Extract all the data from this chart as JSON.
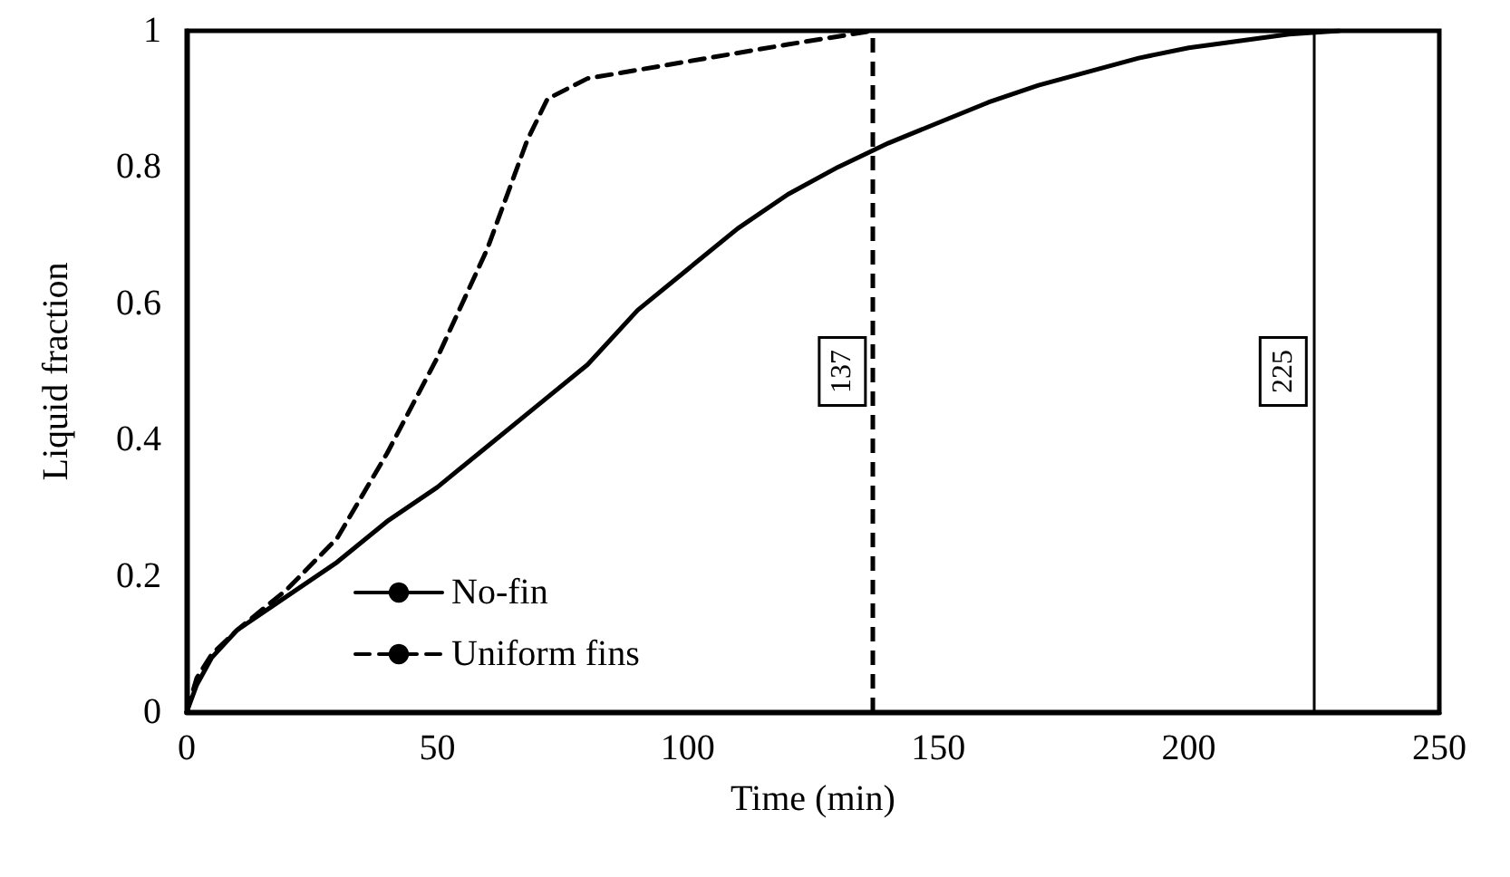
{
  "chart_data": {
    "type": "line",
    "xlabel": "Time (min)",
    "ylabel": "Liquid fraction",
    "xlim": [
      0,
      250
    ],
    "xticks": [
      0,
      50,
      100,
      150,
      200,
      250
    ],
    "ylim": [
      0,
      1
    ],
    "yticks": [
      0,
      0.2,
      0.4,
      0.6,
      0.8,
      1
    ],
    "grid": false,
    "legend": "bottom left",
    "marker": "none",
    "series": [
      {
        "name": "No-fin",
        "color": "#000000",
        "line_style": "solid",
        "x": [
          0,
          2,
          5,
          10,
          20,
          30,
          40,
          50,
          60,
          70,
          80,
          90,
          100,
          110,
          120,
          130,
          140,
          150,
          160,
          170,
          180,
          190,
          200,
          210,
          220,
          230
        ],
        "values": [
          0,
          0.04,
          0.08,
          0.12,
          0.17,
          0.22,
          0.28,
          0.33,
          0.39,
          0.45,
          0.51,
          0.59,
          0.65,
          0.71,
          0.76,
          0.8,
          0.835,
          0.865,
          0.895,
          0.92,
          0.94,
          0.96,
          0.975,
          0.985,
          0.995,
          1
        ]
      },
      {
        "name": "Uniform fins",
        "color": "#000000",
        "line_style": "dashed",
        "x": [
          0,
          2,
          5,
          10,
          20,
          30,
          40,
          50,
          60,
          68,
          72,
          80,
          100,
          120,
          137
        ],
        "values": [
          0,
          0.05,
          0.085,
          0.12,
          0.18,
          0.255,
          0.38,
          0.52,
          0.68,
          0.84,
          0.9,
          0.93,
          0.955,
          0.98,
          1
        ]
      }
    ],
    "ref_lines": [
      {
        "axis": "x",
        "value": 137,
        "label": "137",
        "color": "#000000",
        "line_style": "dashed"
      },
      {
        "axis": "x",
        "value": 225,
        "label": "225",
        "color": "#000000",
        "line_style": "solid"
      }
    ]
  }
}
